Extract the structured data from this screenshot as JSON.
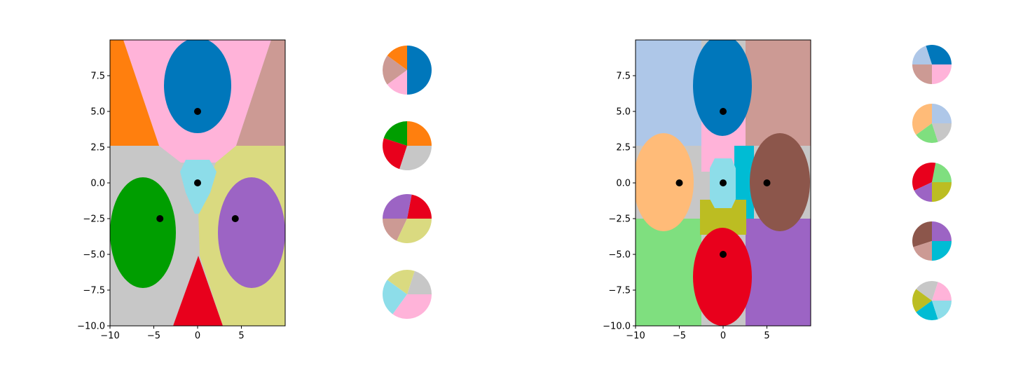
{
  "chart_data": [
    {
      "type": "heatmap",
      "xlim": [
        -10,
        10
      ],
      "ylim": [
        -10,
        10
      ],
      "x_ticks": [
        -10,
        -5,
        0,
        5
      ],
      "x_tick_labels": [
        "−10",
        "−5",
        "0",
        "5"
      ],
      "y_ticks": [
        -10,
        -7.5,
        -5,
        -2.5,
        0,
        2.5,
        5,
        7.5
      ],
      "y_tick_labels": [
        "−10.0",
        "−7.5",
        "−5.0",
        "−2.5",
        "0.0",
        "2.5",
        "5.0",
        "7.5"
      ],
      "grid": false,
      "region_colors": [
        "#0077bb",
        "#ff7f0e",
        "#ffb3d9",
        "#cc9a94",
        "#009e00",
        "#e8001c",
        "#c7c7c7",
        "#dada80",
        "#9c64c4",
        "#8ddde9"
      ],
      "centers": [
        {
          "x": 0,
          "y": 5
        },
        {
          "x": 0,
          "y": 0
        },
        {
          "x": -4.3,
          "y": -2.5
        },
        {
          "x": 4.3,
          "y": -2.5
        }
      ]
    },
    {
      "type": "pie",
      "pies": [
        {
          "values": [
            25,
            15,
            20,
            15,
            25
          ],
          "colors": [
            "#0077bb",
            "#ff7f0e",
            "#cc9a94",
            "#ffb3d9",
            "#0077bb"
          ]
        },
        {
          "values": [
            25,
            20,
            25,
            30
          ],
          "colors": [
            "#ff7f0e",
            "#009e00",
            "#e8001c",
            "#c7c7c7"
          ]
        },
        {
          "values": [
            22,
            28,
            18,
            32
          ],
          "colors": [
            "#e8001c",
            "#9c64c4",
            "#cc9a94",
            "#dada80"
          ]
        },
        {
          "values": [
            20,
            20,
            25,
            35
          ],
          "colors": [
            "#c7c7c7",
            "#dada80",
            "#8ddde9",
            "#ffb3d9"
          ]
        }
      ]
    },
    {
      "type": "heatmap",
      "xlim": [
        -10,
        10
      ],
      "ylim": [
        -10,
        10
      ],
      "x_ticks": [
        -10,
        -5,
        0,
        5
      ],
      "x_tick_labels": [
        "−10",
        "−5",
        "0",
        "5"
      ],
      "y_ticks": [
        -10,
        -7.5,
        -5,
        -2.5,
        0,
        2.5,
        5,
        7.5
      ],
      "y_tick_labels": [
        "−10.0",
        "−7.5",
        "−5.0",
        "−2.5",
        "0.0",
        "2.5",
        "5.0",
        "7.5"
      ],
      "grid": false,
      "region_colors": [
        "#0077bb",
        "#aec7e8",
        "#cc9a94",
        "#ffbb78",
        "#ffb3d9",
        "#c7c7c7",
        "#8ddde9",
        "#00bcd4",
        "#8c564b",
        "#bcbd22",
        "#7fdf7f",
        "#e8001c",
        "#9c64c4"
      ],
      "centers": [
        {
          "x": 0,
          "y": 5
        },
        {
          "x": -5,
          "y": 0
        },
        {
          "x": 0,
          "y": 0
        },
        {
          "x": 5,
          "y": 0
        },
        {
          "x": 0,
          "y": -5
        }
      ]
    },
    {
      "type": "pie",
      "pies": [
        {
          "values": [
            30,
            20,
            25,
            25
          ],
          "colors": [
            "#0077bb",
            "#aec7e8",
            "#cc9a94",
            "#ffb3d9"
          ]
        },
        {
          "values": [
            25,
            35,
            20,
            20
          ],
          "colors": [
            "#aec7e8",
            "#ffbb78",
            "#7fdf7f",
            "#c7c7c7"
          ]
        },
        {
          "values": [
            22,
            35,
            18,
            25
          ],
          "colors": [
            "#7fdf7f",
            "#e8001c",
            "#9c64c4",
            "#bcbd22"
          ]
        },
        {
          "values": [
            25,
            30,
            20,
            25
          ],
          "colors": [
            "#9c64c4",
            "#8c564b",
            "#cc9a94",
            "#00bcd4"
          ]
        },
        {
          "values": [
            20,
            20,
            20,
            20,
            20
          ],
          "colors": [
            "#ffb3d9",
            "#c7c7c7",
            "#bcbd22",
            "#00bcd4",
            "#8ddde9"
          ]
        }
      ]
    }
  ]
}
